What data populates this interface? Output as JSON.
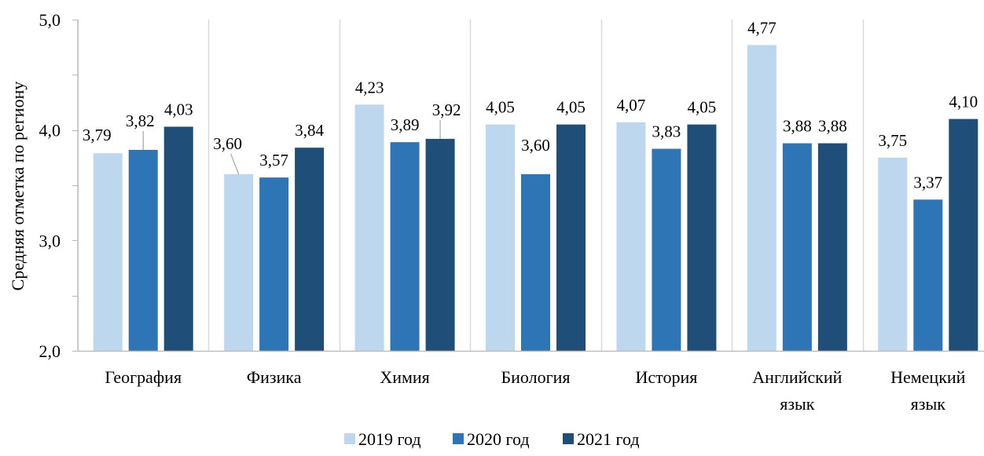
{
  "chart_data": {
    "type": "bar",
    "ylabel": "Средняя отметка по региону",
    "ylim": [
      2.0,
      5.0
    ],
    "yticks": [
      2.0,
      3.0,
      4.0,
      5.0
    ],
    "ytick_labels": [
      "2,0",
      "3,0",
      "4,0",
      "5,0"
    ],
    "grid": "vertical category separators",
    "legend_position": "bottom",
    "categories": [
      [
        "География"
      ],
      [
        "Физика"
      ],
      [
        "Химия"
      ],
      [
        "Биология"
      ],
      [
        "История"
      ],
      [
        "Английский",
        "язык"
      ],
      [
        "Немецкий",
        "язык"
      ]
    ],
    "series": [
      {
        "name": "2019 год",
        "color": "#bdd7ee",
        "values": [
          3.79,
          3.6,
          4.23,
          4.05,
          4.07,
          4.77,
          3.75
        ],
        "labels": [
          "3,79",
          "3,60",
          "4,23",
          "4,05",
          "4,07",
          "4,77",
          "3,75"
        ]
      },
      {
        "name": "2020 год",
        "color": "#2e75b6",
        "values": [
          3.82,
          3.57,
          3.89,
          3.6,
          3.83,
          3.88,
          3.37
        ],
        "labels": [
          "3,82",
          "3,57",
          "3,89",
          "3,60",
          "3,83",
          "3,88",
          "3,37"
        ]
      },
      {
        "name": "2021 год",
        "color": "#1f4e79",
        "values": [
          4.03,
          3.84,
          3.92,
          4.05,
          4.05,
          3.88,
          4.1
        ],
        "labels": [
          "4,03",
          "3,84",
          "3,92",
          "4,05",
          "4,05",
          "3,88",
          "4,10"
        ]
      }
    ]
  }
}
